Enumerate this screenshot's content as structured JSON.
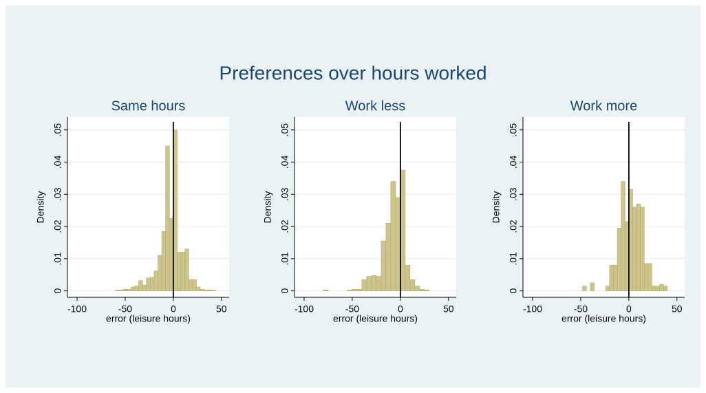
{
  "title": "Preferences over hours worked",
  "chart_data": [
    {
      "type": "histogram",
      "title": "Same hours",
      "xlabel": "error (leisure hours)",
      "ylabel": "Density",
      "color": "#ccc58e",
      "grid": true,
      "xline": 0,
      "bins": [
        -60,
        -56,
        -52,
        -48,
        -44,
        -40,
        -36,
        -32,
        -28,
        -24,
        -20,
        -16,
        -12,
        -8,
        -4,
        0,
        4,
        8,
        12,
        16,
        20,
        24,
        28,
        32,
        36,
        40,
        44
      ],
      "values": [
        0.0003,
        0.0003,
        0.0005,
        0.0005,
        0.0012,
        0.0015,
        0.0032,
        0.0018,
        0.004,
        0.0042,
        0.0062,
        0.011,
        0.0185,
        0.045,
        0.0225,
        0.05,
        0.012,
        0.012,
        0.013,
        0.0035,
        0.0035,
        0.0012,
        0.0005,
        0.0003,
        0.0003,
        0.0002
      ],
      "xlim": [
        -110,
        58
      ],
      "ylim": [
        -0.002,
        0.054
      ],
      "xticks": [
        -100,
        -50,
        0,
        50
      ],
      "yticks": [
        {
          "value": 0,
          "label": "0"
        },
        {
          "value": 0.01,
          "label": ".01"
        },
        {
          "value": 0.02,
          "label": ".02"
        },
        {
          "value": 0.03,
          "label": ".03"
        },
        {
          "value": 0.04,
          "label": ".04"
        },
        {
          "value": 0.05,
          "label": ".05"
        }
      ]
    },
    {
      "type": "histogram",
      "title": "Work less",
      "xlabel": "error (leisure hours)",
      "ylabel": "Density",
      "color": "#ccc58e",
      "grid": true,
      "xline": 0,
      "bins": [
        -80,
        -75,
        -70,
        -65,
        -60,
        -55,
        -50,
        -45,
        -40,
        -35,
        -30,
        -25,
        -20,
        -15,
        -10,
        -5,
        0,
        5,
        10,
        15,
        20,
        25,
        30,
        35,
        40
      ],
      "values": [
        0.0003,
        0,
        0,
        0,
        0,
        0.0003,
        0.0005,
        0.0005,
        0.0035,
        0.0045,
        0.0048,
        0.0045,
        0.0155,
        0.021,
        0.034,
        0.029,
        0.0375,
        0.008,
        0.0035,
        0.0015,
        0.0005,
        0.0003,
        0,
        0
      ],
      "xlim": [
        -110,
        58
      ],
      "ylim": [
        -0.002,
        0.054
      ],
      "xticks": [
        -100,
        -50,
        0,
        50
      ],
      "yticks": [
        {
          "value": 0,
          "label": "0"
        },
        {
          "value": 0.01,
          "label": ".01"
        },
        {
          "value": 0.02,
          "label": ".02"
        },
        {
          "value": 0.03,
          "label": ".03"
        },
        {
          "value": 0.04,
          "label": ".04"
        },
        {
          "value": 0.05,
          "label": ".05"
        }
      ]
    },
    {
      "type": "histogram",
      "title": "Work more",
      "xlabel": "error (leisure hours)",
      "ylabel": "Density",
      "color": "#ccc58e",
      "grid": true,
      "xline": 0,
      "bins": [
        -48,
        -44,
        -40,
        -36,
        -32,
        -28,
        -24,
        -20,
        -16,
        -12,
        -8,
        -4,
        0,
        4,
        8,
        12,
        16,
        20,
        24,
        28,
        32,
        36,
        40
      ],
      "values": [
        0.0015,
        0,
        0.0025,
        0,
        0,
        0,
        0.0015,
        0.008,
        0.008,
        0.0195,
        0.034,
        0.0215,
        0.0315,
        0.026,
        0.027,
        0.026,
        0.0085,
        0.0085,
        0.0015,
        0.0015,
        0.002,
        0.0015
      ],
      "xlim": [
        -110,
        58
      ],
      "ylim": [
        -0.002,
        0.054
      ],
      "xticks": [
        -100,
        -50,
        0,
        50
      ],
      "yticks": [
        {
          "value": 0,
          "label": "0"
        },
        {
          "value": 0.01,
          "label": ".01"
        },
        {
          "value": 0.02,
          "label": ".02"
        },
        {
          "value": 0.03,
          "label": ".03"
        },
        {
          "value": 0.04,
          "label": ".04"
        },
        {
          "value": 0.05,
          "label": ".05"
        }
      ]
    }
  ]
}
